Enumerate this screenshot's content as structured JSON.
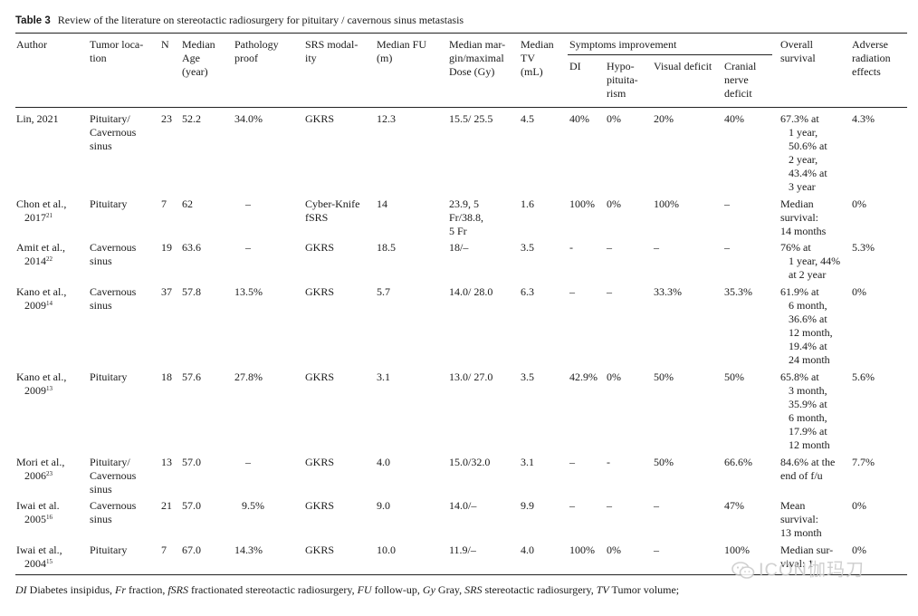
{
  "caption": {
    "label": "Table 3",
    "text": "Review of the literature on stereotactic radiosurgery for pituitary / cavernous sinus metastasis"
  },
  "headers": {
    "author": "Author",
    "location": [
      "Tumor loca-",
      "tion"
    ],
    "n": "N",
    "age": [
      "Median",
      "Age",
      "(year)"
    ],
    "pathology": [
      "Pathology",
      "proof"
    ],
    "srs": [
      "SRS modal-",
      "ity"
    ],
    "fu": [
      "Median FU",
      "(m)"
    ],
    "margin": [
      "Median mar-",
      "gin/maximal",
      "Dose (Gy)"
    ],
    "tv": [
      "Median",
      "TV",
      "(mL)"
    ],
    "symptoms": "Symptoms improvement",
    "di": "DI",
    "hypo": [
      "Hypo-",
      "pituita-",
      "rism"
    ],
    "visual": "Visual deficit",
    "cranial": [
      "Cranial",
      "nerve",
      "deficit"
    ],
    "survival": [
      "Overall",
      "survival"
    ],
    "adverse": [
      "Adverse",
      "radiation",
      "effects"
    ]
  },
  "rows": [
    {
      "author": [
        "Lin, 2021"
      ],
      "location": [
        "Pituitary/",
        "Cavernous",
        "sinus"
      ],
      "n": "23",
      "age": "52.2",
      "pathology": "34.0%",
      "srs": [
        "GKRS"
      ],
      "fu": "12.3",
      "margin": [
        "15.5/ 25.5"
      ],
      "tv": "4.5",
      "di": "40%",
      "hypo": "0%",
      "visual": "20%",
      "cranial": "40%",
      "survival": [
        "67.3% at",
        "1 year,",
        "50.6% at",
        "2 year,",
        "43.4% at",
        "3 year"
      ],
      "adverse": "4.3%"
    },
    {
      "author": [
        "Chon et al.,",
        "2017"
      ],
      "sup": "21",
      "location": [
        "Pituitary"
      ],
      "n": "7",
      "age": "62",
      "pathology": "–",
      "srs": [
        "Cyber-Knife",
        "fSRS"
      ],
      "fu": "14",
      "margin": [
        "23.9, 5",
        "Fr/38.8,",
        "5 Fr"
      ],
      "tv": "1.6",
      "di": "100%",
      "hypo": "0%",
      "visual": "100%",
      "cranial": "–",
      "survival": [
        "Median",
        "survival:",
        "14 months"
      ],
      "adverse": "0%"
    },
    {
      "author": [
        "Amit et al.,",
        "2014"
      ],
      "sup": "22",
      "location": [
        "Cavernous",
        "sinus"
      ],
      "n": "19",
      "age": "63.6",
      "pathology": "–",
      "srs": [
        "GKRS"
      ],
      "fu": "18.5",
      "margin": [
        "18/–"
      ],
      "tv": "3.5",
      "di": "-",
      "hypo": "–",
      "visual": "–",
      "cranial": "–",
      "survival": [
        "76% at",
        "1 year, 44%",
        "at 2 year"
      ],
      "adverse": "5.3%"
    },
    {
      "author": [
        "Kano et al.,",
        "2009"
      ],
      "sup": "14",
      "location": [
        "Cavernous",
        "sinus"
      ],
      "n": "37",
      "age": "57.8",
      "pathology": "13.5%",
      "srs": [
        "GKRS"
      ],
      "fu": "5.7",
      "margin": [
        "14.0/ 28.0"
      ],
      "tv": "6.3",
      "di": "–",
      "hypo": "–",
      "visual": "33.3%",
      "cranial": "35.3%",
      "survival": [
        "61.9% at",
        "6 month,",
        "36.6% at",
        "12 month,",
        "19.4% at",
        "24 month"
      ],
      "adverse": "0%"
    },
    {
      "author": [
        "Kano et al.,",
        "2009"
      ],
      "sup": "13",
      "location": [
        "Pituitary"
      ],
      "n": "18",
      "age": "57.6",
      "pathology": "27.8%",
      "srs": [
        "GKRS"
      ],
      "fu": "3.1",
      "margin": [
        "13.0/ 27.0"
      ],
      "tv": "3.5",
      "di": "42.9%",
      "hypo": "0%",
      "visual": "50%",
      "cranial": "50%",
      "survival": [
        "65.8% at",
        "3 month,",
        "35.9% at",
        "6 month,",
        "17.9% at",
        "12 month"
      ],
      "adverse": "5.6%"
    },
    {
      "author": [
        "Mori et al.,",
        "2006"
      ],
      "sup": "23",
      "location": [
        "Pituitary/",
        "Cavernous",
        "sinus"
      ],
      "n": "13",
      "age": "57.0",
      "pathology": "–",
      "srs": [
        "GKRS"
      ],
      "fu": "4.0",
      "margin": [
        "15.0/32.0"
      ],
      "tv": "3.1",
      "di": "–",
      "hypo": "-",
      "visual": "50%",
      "cranial": "66.6%",
      "survival": [
        "84.6% at the",
        "end of f/u"
      ],
      "adverse": "7.7%"
    },
    {
      "author": [
        "Iwai et al.",
        "2005"
      ],
      "sup": "16",
      "location": [
        "Cavernous",
        "sinus"
      ],
      "n": "21",
      "age": "57.0",
      "pathology": "9.5%",
      "srs": [
        "GKRS"
      ],
      "fu": "9.0",
      "margin": [
        "14.0/–"
      ],
      "tv": "9.9",
      "di": "–",
      "hypo": "–",
      "visual": "–",
      "cranial": "47%",
      "survival": [
        "Mean",
        "survival:",
        "13 month"
      ],
      "adverse": "0%"
    },
    {
      "author": [
        "Iwai et al.,",
        "2004"
      ],
      "sup": "15",
      "location": [
        "Pituitary"
      ],
      "n": "7",
      "age": "67.0",
      "pathology": "14.3%",
      "srs": [
        "GKRS"
      ],
      "fu": "10.0",
      "margin": [
        "11.9/–"
      ],
      "tv": "4.0",
      "di": "100%",
      "hypo": "0%",
      "visual": "–",
      "cranial": "100%",
      "survival": [
        "Median sur-",
        "vival: 1"
      ],
      "adverse": "0%"
    }
  ],
  "footnote": [
    {
      "abbr": "DI",
      "text": " Diabetes insipidus, "
    },
    {
      "abbr": "Fr",
      "text": " fraction, "
    },
    {
      "abbr": "fSRS",
      "text": " fractionated stereotactic radiosurgery, "
    },
    {
      "abbr": "FU",
      "text": " follow-up, "
    },
    {
      "abbr": "Gy",
      "text": " Gray, "
    },
    {
      "abbr": "SRS",
      "text": " stereotactic radiosurgery, "
    },
    {
      "abbr": "TV",
      "text": " Tumor volume;"
    }
  ],
  "watermark": {
    "text": "ICON伽玛刀",
    "icon": "wechat-icon"
  }
}
